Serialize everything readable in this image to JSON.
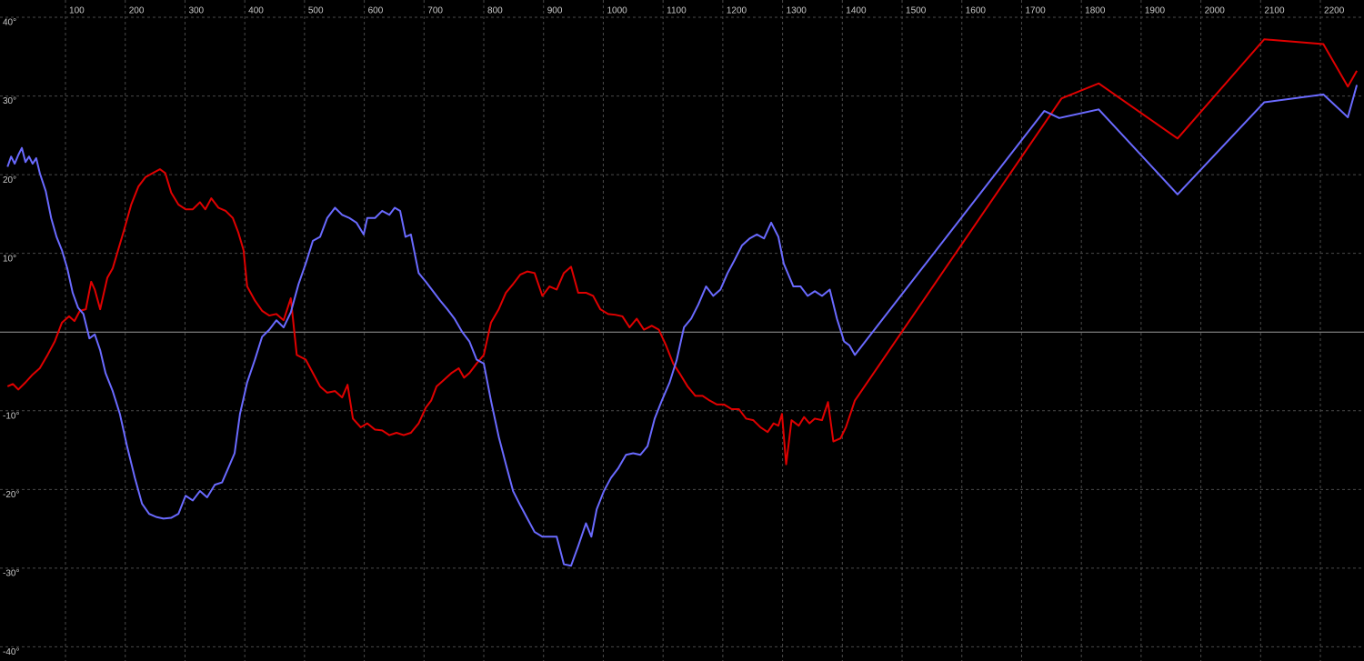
{
  "chart_data": {
    "type": "line",
    "xlim": [
      -9.6,
      2273
    ],
    "ylim": [
      -41.8,
      42.2
    ],
    "xticks": [
      100,
      200,
      300,
      400,
      500,
      600,
      700,
      800,
      900,
      1000,
      1100,
      1200,
      1300,
      1400,
      1500,
      1600,
      1700,
      1800,
      1900,
      2000,
      2100,
      2200
    ],
    "yticks": [
      {
        "value": 40,
        "label": "40°"
      },
      {
        "value": 30,
        "label": "30°"
      },
      {
        "value": 20,
        "label": "20°"
      },
      {
        "value": 10,
        "label": "10°"
      },
      {
        "value": -10,
        "label": "-10°"
      },
      {
        "value": -20,
        "label": "-20°"
      },
      {
        "value": -30,
        "label": "-30°"
      },
      {
        "value": -40,
        "label": "-40°"
      }
    ],
    "grid": true,
    "zero_line": true,
    "background": "#000000",
    "series": [
      {
        "color": "#e00000",
        "x": [
          3,
          12,
          21,
          33,
          45,
          57,
          70,
          82,
          94,
          106,
          115,
          124,
          134,
          143,
          149,
          158,
          170,
          179,
          188,
          197,
          210,
          222,
          234,
          246,
          258,
          267,
          277,
          289,
          301,
          313,
          325,
          334,
          344,
          356,
          368,
          380,
          389,
          398,
          404,
          417,
          429,
          441,
          453,
          465,
          477,
          487,
          502,
          514,
          526,
          538,
          551,
          563,
          572,
          581,
          594,
          605,
          618,
          630,
          642,
          654,
          666,
          678,
          691,
          703,
          712,
          721,
          733,
          746,
          758,
          767,
          776,
          788,
          800,
          812,
          825,
          837,
          849,
          861,
          873,
          885,
          898,
          910,
          922,
          934,
          946,
          958,
          971,
          983,
          995,
          1008,
          1020,
          1032,
          1044,
          1056,
          1068,
          1081,
          1093,
          1105,
          1117,
          1129,
          1141,
          1154,
          1166,
          1178,
          1190,
          1202,
          1215,
          1227,
          1239,
          1251,
          1263,
          1275,
          1285,
          1293,
          1299,
          1306,
          1315,
          1327,
          1336,
          1345,
          1354,
          1366,
          1376,
          1385,
          1397,
          1406,
          1421,
          1767,
          1829,
          1961,
          2106,
          2205,
          2246,
          2261
        ],
        "values": [
          -6.9,
          -6.6,
          -7.3,
          -6.4,
          -5.4,
          -4.6,
          -2.9,
          -1.2,
          1.2,
          2.0,
          1.4,
          2.7,
          2.9,
          6.4,
          5.4,
          2.9,
          6.9,
          8.1,
          10.4,
          12.7,
          16.2,
          18.5,
          19.7,
          20.2,
          20.7,
          20.2,
          17.7,
          16.2,
          15.6,
          15.6,
          16.5,
          15.6,
          17.0,
          15.8,
          15.4,
          14.5,
          12.7,
          10.4,
          5.8,
          4.0,
          2.7,
          2.1,
          2.3,
          1.5,
          4.3,
          -2.9,
          -3.5,
          -5.2,
          -6.9,
          -7.7,
          -7.5,
          -8.3,
          -6.7,
          -11.0,
          -12.1,
          -11.6,
          -12.4,
          -12.5,
          -13.1,
          -12.8,
          -13.1,
          -12.8,
          -11.6,
          -9.6,
          -8.7,
          -6.9,
          -6.1,
          -5.2,
          -4.6,
          -5.8,
          -5.2,
          -4.0,
          -2.9,
          1.2,
          2.9,
          5.0,
          6.1,
          7.3,
          7.7,
          7.5,
          4.6,
          5.8,
          5.4,
          7.5,
          8.3,
          5.0,
          5.0,
          4.6,
          2.9,
          2.3,
          2.2,
          2.0,
          0.6,
          1.7,
          0.3,
          0.8,
          0.3,
          -1.7,
          -4.0,
          -5.4,
          -6.9,
          -8.1,
          -8.1,
          -8.7,
          -9.2,
          -9.2,
          -9.8,
          -9.8,
          -11.0,
          -11.2,
          -12.1,
          -12.7,
          -11.6,
          -11.9,
          -10.4,
          -16.8,
          -11.2,
          -11.9,
          -10.8,
          -11.6,
          -11.0,
          -11.2,
          -8.9,
          -13.9,
          -13.5,
          -12.1,
          -8.7,
          29.7,
          31.6,
          24.6,
          37.2,
          36.6,
          31.2,
          33.2
        ]
      },
      {
        "color": "#6a6aff",
        "x": [
          3,
          9,
          15,
          21,
          27,
          33,
          39,
          45,
          51,
          57,
          67,
          76,
          85,
          94,
          103,
          112,
          121,
          130,
          140,
          149,
          158,
          167,
          179,
          191,
          203,
          216,
          228,
          240,
          252,
          264,
          277,
          289,
          301,
          313,
          325,
          337,
          350,
          362,
          374,
          383,
          392,
          404,
          417,
          429,
          441,
          453,
          465,
          477,
          490,
          502,
          514,
          526,
          538,
          551,
          563,
          575,
          587,
          599,
          605,
          618,
          630,
          642,
          651,
          660,
          669,
          678,
          691,
          703,
          715,
          727,
          739,
          751,
          764,
          776,
          788,
          800,
          812,
          825,
          837,
          849,
          861,
          873,
          885,
          898,
          910,
          922,
          934,
          946,
          958,
          971,
          980,
          989,
          1001,
          1013,
          1025,
          1038,
          1050,
          1062,
          1074,
          1086,
          1098,
          1111,
          1123,
          1135,
          1147,
          1159,
          1172,
          1184,
          1196,
          1208,
          1220,
          1232,
          1245,
          1257,
          1269,
          1281,
          1293,
          1302,
          1318,
          1330,
          1342,
          1354,
          1366,
          1379,
          1391,
          1403,
          1412,
          1421,
          1738,
          1763,
          1829,
          1961,
          2106,
          2205,
          2246,
          2261
        ],
        "values": [
          21.0,
          22.3,
          21.4,
          22.5,
          23.4,
          21.6,
          22.3,
          21.4,
          22.1,
          20.2,
          17.9,
          14.5,
          12.1,
          10.4,
          8.1,
          5.0,
          3.1,
          2.3,
          -0.8,
          -0.3,
          -2.3,
          -5.2,
          -7.5,
          -10.4,
          -14.5,
          -18.5,
          -21.8,
          -23.1,
          -23.5,
          -23.7,
          -23.6,
          -23.1,
          -20.8,
          -21.4,
          -20.2,
          -21.0,
          -19.4,
          -19.1,
          -17.0,
          -15.4,
          -10.4,
          -6.4,
          -3.5,
          -0.6,
          0.3,
          1.5,
          0.6,
          2.5,
          6.1,
          8.7,
          11.6,
          12.1,
          14.5,
          15.8,
          14.9,
          14.5,
          13.9,
          12.4,
          14.5,
          14.5,
          15.4,
          14.9,
          15.8,
          15.4,
          12.1,
          12.4,
          7.5,
          6.4,
          5.2,
          4.0,
          2.9,
          1.7,
          0,
          -1.2,
          -3.5,
          -4.0,
          -8.7,
          -13.3,
          -16.8,
          -20.2,
          -22.0,
          -23.7,
          -25.4,
          -26.0,
          -26.0,
          -26.0,
          -29.5,
          -29.7,
          -27.2,
          -24.3,
          -26.0,
          -22.5,
          -20.2,
          -18.5,
          -17.3,
          -15.6,
          -15.4,
          -15.6,
          -14.5,
          -11.0,
          -8.7,
          -6.4,
          -3.5,
          0.6,
          1.7,
          3.5,
          5.8,
          4.6,
          5.4,
          7.5,
          9.2,
          11.0,
          11.9,
          12.4,
          11.9,
          13.9,
          12.1,
          8.7,
          5.8,
          5.8,
          4.6,
          5.2,
          4.6,
          5.4,
          1.7,
          -1.2,
          -1.7,
          -2.9,
          28.1,
          27.2,
          28.3,
          17.5,
          29.2,
          30.2,
          27.3,
          31.4
        ]
      }
    ]
  }
}
